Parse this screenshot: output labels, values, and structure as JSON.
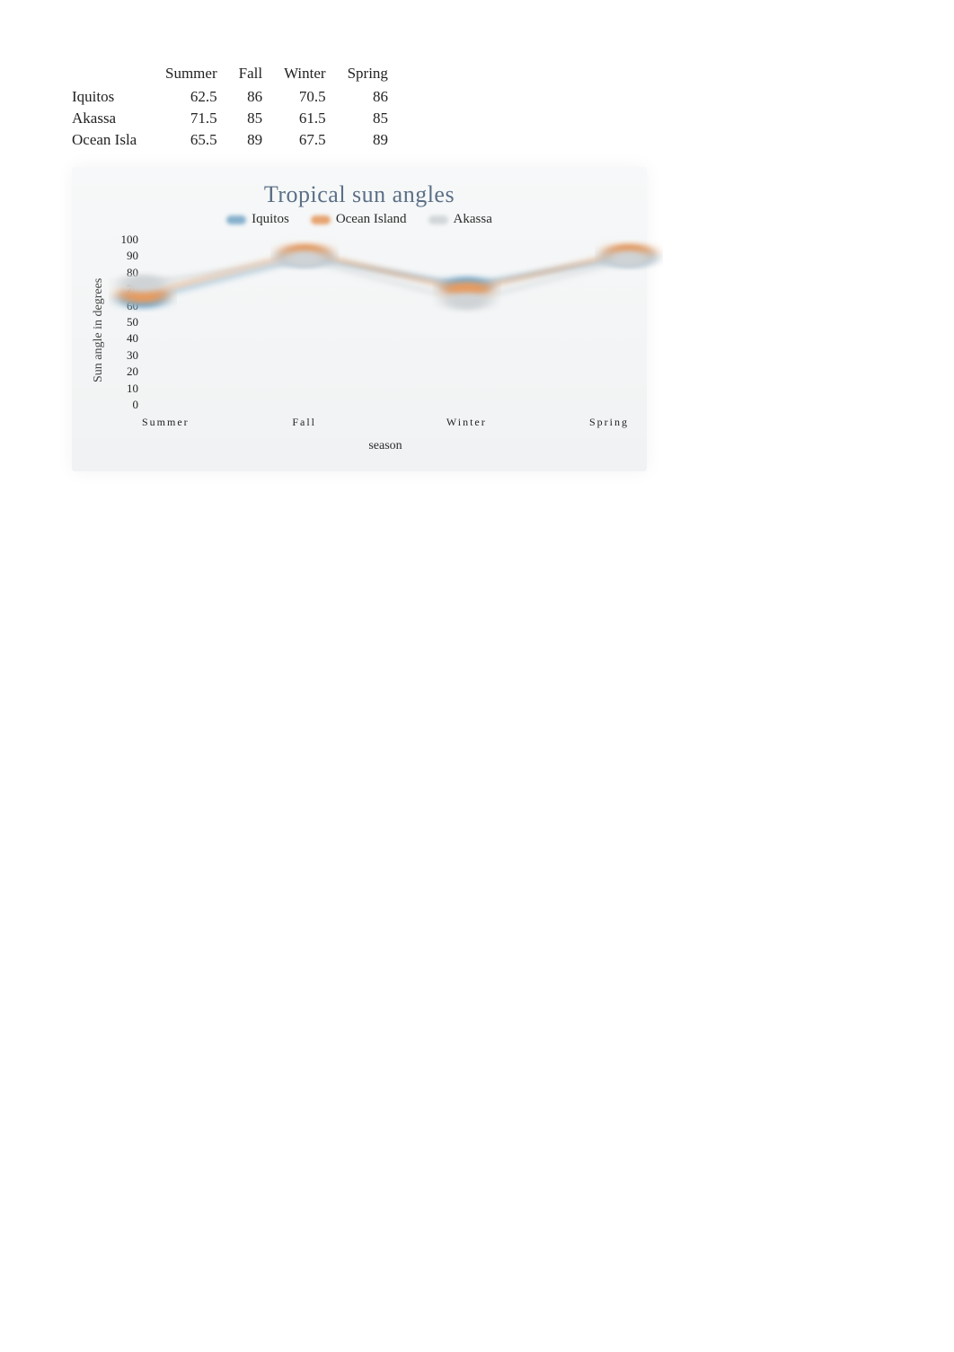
{
  "table": {
    "columns": [
      "Summer",
      "Fall",
      "Winter",
      "Spring"
    ],
    "rows": [
      {
        "label": "Iquitos",
        "values": [
          62.5,
          86,
          70.5,
          86
        ]
      },
      {
        "label": "Akassa",
        "values": [
          71.5,
          85,
          61.5,
          85
        ]
      },
      {
        "label": "Ocean Isla",
        "values": [
          65.5,
          89,
          67.5,
          89
        ]
      }
    ],
    "label_fontsize": 17
  },
  "chart": {
    "type": "line",
    "title": "Tropical sun angles",
    "title_color": "#5b6f86",
    "title_fontsize": 26,
    "background_gradient": [
      "#f6f8f9",
      "#f0f2f3"
    ],
    "legend_items": [
      {
        "name": "Iquitos",
        "color": "#7ca9c8"
      },
      {
        "name": "Ocean Island",
        "color": "#e59b62"
      },
      {
        "name": "Akassa",
        "color": "#cfd3d6"
      }
    ],
    "ylabel": "Sun angle in degrees",
    "xlabel": "season",
    "x_categories": [
      "Summer",
      "Fall",
      "Winter",
      "Spring"
    ],
    "ylim": [
      0,
      100
    ],
    "ytick_step": 10,
    "line_width": 3,
    "marker_radius": 5,
    "marker_blur": 1.5,
    "tick_fontsize": 13,
    "xtick_fontsize": 12,
    "label_fontsize": 14,
    "series": [
      {
        "name": "Iquitos",
        "color": "#7ca9c8",
        "values": [
          62.5,
          86,
          70.5,
          86
        ]
      },
      {
        "name": "Ocean Island",
        "color": "#e59b62",
        "values": [
          65.5,
          89,
          67.5,
          89
        ]
      },
      {
        "name": "Akassa",
        "color": "#cfd3d6",
        "values": [
          71.5,
          85,
          61.5,
          85
        ]
      }
    ]
  }
}
